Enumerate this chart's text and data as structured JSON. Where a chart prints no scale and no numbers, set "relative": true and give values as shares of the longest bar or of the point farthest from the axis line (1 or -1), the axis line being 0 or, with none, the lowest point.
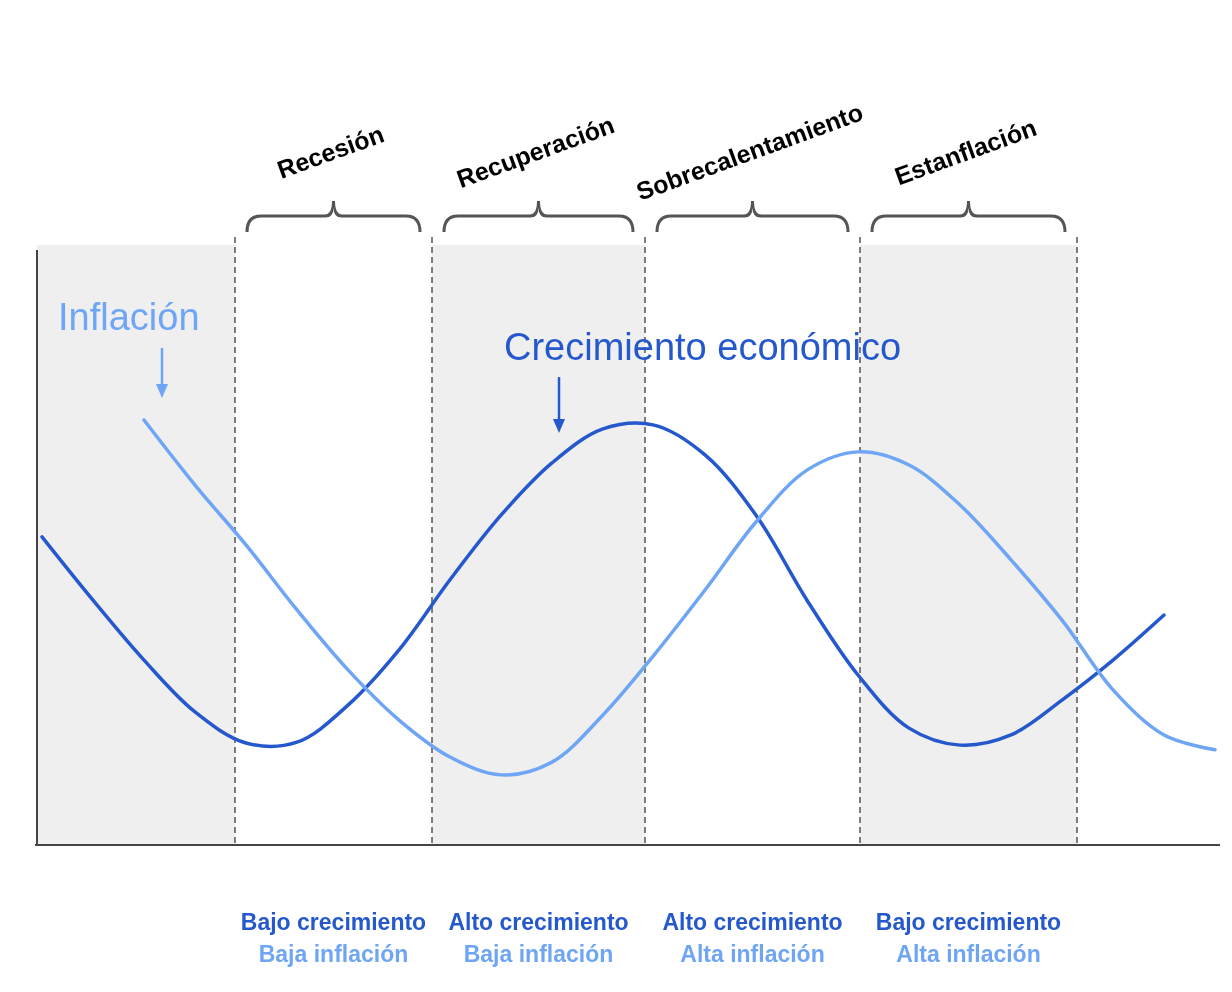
{
  "chart_data": {
    "type": "line",
    "relative": true,
    "categories": [
      null,
      null,
      null,
      null,
      null,
      null,
      null,
      null,
      null,
      null,
      null,
      null,
      null,
      null,
      null,
      null,
      null,
      null,
      null,
      null,
      null,
      null,
      null,
      null
    ],
    "series": [
      {
        "name": "Crecimiento económico",
        "color": "#2458cc",
        "values": [
          0.725,
          0.576,
          0.435,
          0.313,
          0.24,
          0.242,
          0.329,
          0.459,
          0.624,
          0.776,
          0.899,
          0.979,
          0.988,
          0.918,
          0.776,
          0.576,
          0.4,
          0.275,
          0.235,
          0.259,
          0.341,
          0.435,
          0.541,
          null
        ]
      },
      {
        "name": "Inflación",
        "color": "#6ea6f5",
        "values": [
          null,
          null,
          1.0,
          0.847,
          0.706,
          0.553,
          0.412,
          0.294,
          0.207,
          0.165,
          0.195,
          0.306,
          0.447,
          0.6,
          0.76,
          0.882,
          0.925,
          0.894,
          0.8,
          0.671,
          0.529,
          0.365,
          0.259,
          0.224
        ]
      }
    ],
    "annotations": [
      "Recesión",
      "Recuperación",
      "Sobrecalentamiento",
      "Estanflación",
      "Bajo crecimiento",
      "Baja inflación",
      "Alto crecimiento",
      "Baja inflación",
      "Alto crecimiento",
      "Alta inflación",
      "Bajo crecimiento",
      "Alta inflación"
    ],
    "line_style": "solid",
    "marker": "none",
    "grid": false,
    "legend": false
  }
}
